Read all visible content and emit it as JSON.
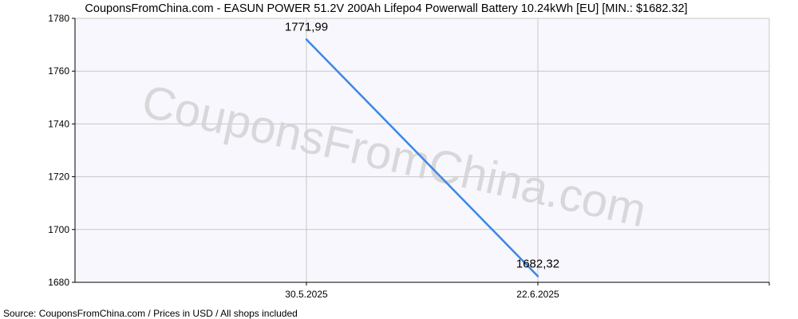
{
  "chart_data": {
    "type": "line",
    "title": "CouponsFromChina.com - EASUN POWER 51.2V 200Ah Lifepo4 Powerwall Battery 10.24kWh [EU] [MIN.: $1682.32]",
    "x_ticks": [
      "30.5.2025",
      "22.6.2025"
    ],
    "y_ticks": [
      "1680",
      "1700",
      "1720",
      "1740",
      "1760",
      "1780"
    ],
    "ylim": [
      1680,
      1780
    ],
    "grid": true,
    "series": [
      {
        "points": [
          {
            "x": "30.5.2025",
            "y": 1771.99,
            "label": "1771,99"
          },
          {
            "x": "22.6.2025",
            "y": 1682.32,
            "label": "1682,32"
          }
        ]
      }
    ],
    "watermark": "CouponsFromChina.com",
    "footer": "Source:  CouponsFromChina.com / Prices in USD / All shops included"
  },
  "colors": {
    "line": "#3c87e6",
    "plot_bg": "#f7f7fd",
    "grid": "#c8c8c8",
    "axis": "#000000"
  }
}
